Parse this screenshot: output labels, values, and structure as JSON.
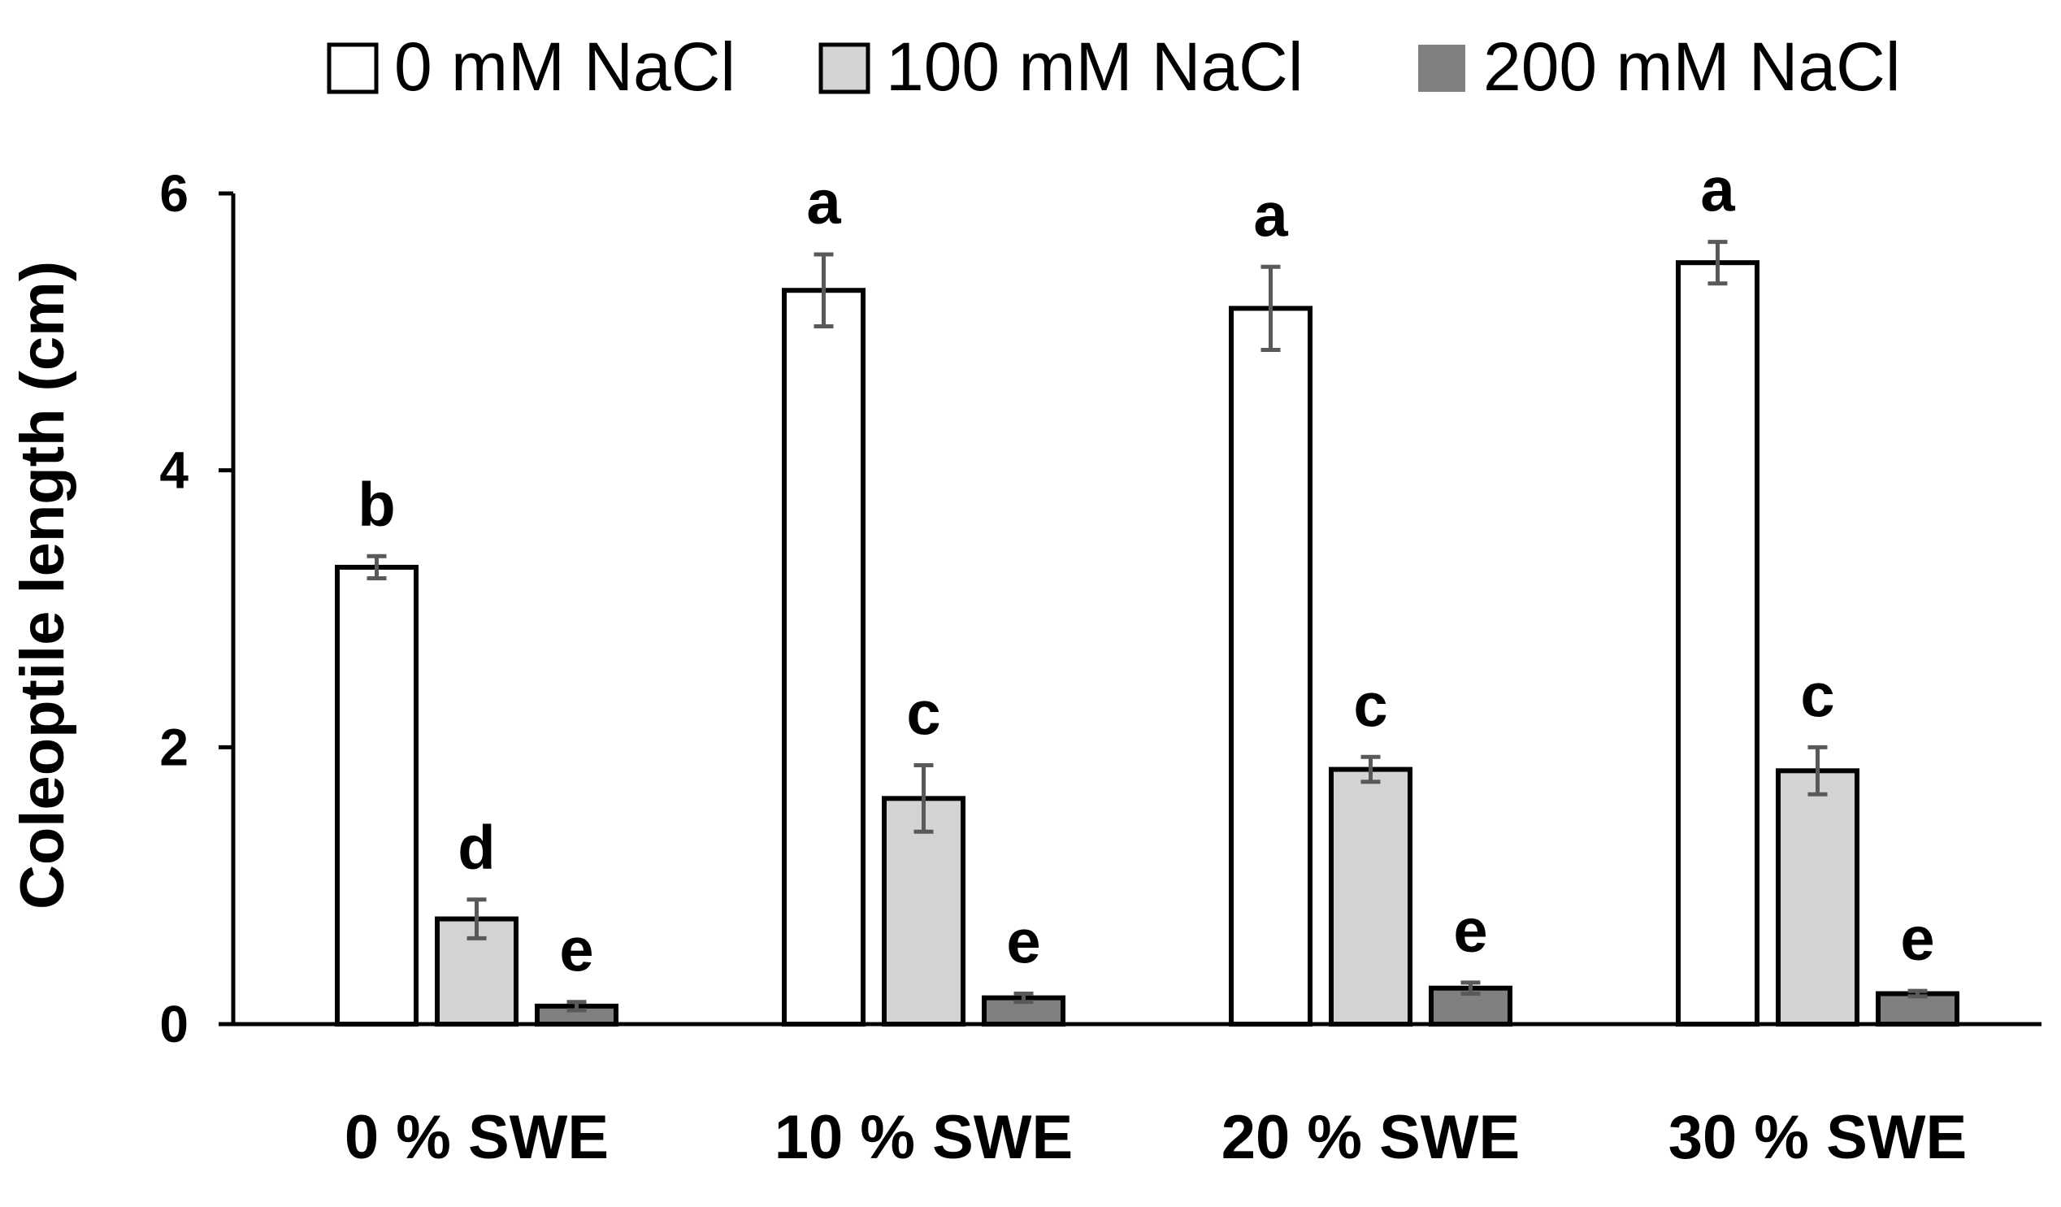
{
  "chart_data": {
    "type": "bar",
    "title": "",
    "xlabel": "",
    "ylabel": "Coleoptile length (cm)",
    "ylim": [
      0,
      6
    ],
    "yticks": [
      0,
      2,
      4,
      6
    ],
    "grid": false,
    "legend_position": "top",
    "categories": [
      "0 % SWE",
      "10 % SWE",
      "20 % SWE",
      "30 % SWE"
    ],
    "series": [
      {
        "name": "0 mM NaCl",
        "color": "#ffffff",
        "values": [
          3.3,
          5.3,
          5.17,
          5.5
        ],
        "errors": [
          0.08,
          0.26,
          0.3,
          0.15
        ],
        "labels": [
          "b",
          "a",
          "a",
          "a"
        ]
      },
      {
        "name": "100 mM NaCl",
        "color": "#d3d3d3",
        "values": [
          0.76,
          1.63,
          1.84,
          1.83
        ],
        "errors": [
          0.14,
          0.24,
          0.09,
          0.17
        ],
        "labels": [
          "d",
          "c",
          "c",
          "c"
        ]
      },
      {
        "name": "200 mM NaCl",
        "color": "#808080",
        "values": [
          0.13,
          0.19,
          0.26,
          0.22
        ],
        "errors": [
          0.03,
          0.03,
          0.04,
          0.02
        ],
        "labels": [
          "e",
          "e",
          "e",
          "e"
        ]
      }
    ]
  }
}
